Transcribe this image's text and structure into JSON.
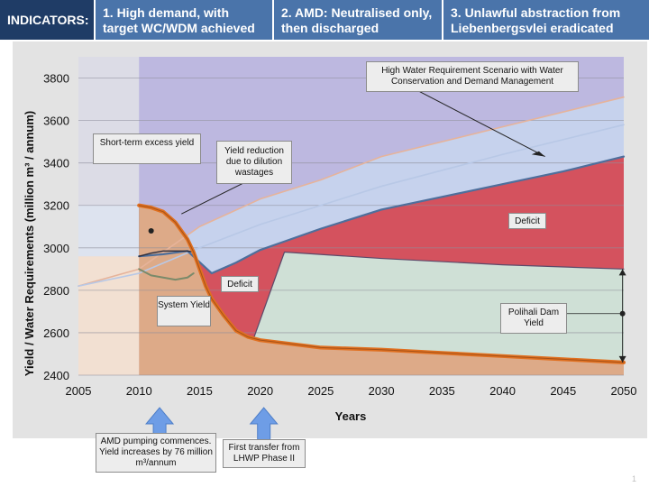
{
  "header": {
    "label": "INDICATORS:",
    "indicators": [
      "1. High demand, with target WC/WDM achieved",
      "2. AMD: Neutralised only, then discharged",
      "3. Unlawful abstraction from Liebenbergsvlei eradicated"
    ]
  },
  "page_number": "1",
  "colors": {
    "deficit": "#D4525E",
    "system_yield_area": "#DDAA88",
    "excess_yield": "#4F6FA0",
    "polihali": "#CFE0D6",
    "requirement_area": "#C8D6EE",
    "upper_band": "#B9B3DE",
    "yield_line": "#E07020"
  },
  "chart_data": {
    "type": "area",
    "title": "",
    "xlabel": "Years",
    "ylabel": "Yield / Water Requirements (million m³ / annum)",
    "xlim": [
      2005,
      2050
    ],
    "ylim": [
      2400,
      3900
    ],
    "xticks": [
      2005,
      2010,
      2015,
      2020,
      2025,
      2030,
      2035,
      2040,
      2045,
      2050
    ],
    "yticks": [
      2400,
      2600,
      2800,
      3000,
      3200,
      3400,
      3600,
      3800
    ],
    "grid": true,
    "series": [
      {
        "role": "requirement",
        "x": [
          2010,
          2012,
          2014,
          2016,
          2018,
          2020,
          2022,
          2025,
          2030,
          2035,
          2040,
          2045,
          2050
        ],
        "y": [
          2960,
          2970,
          2985,
          2880,
          2930,
          2990,
          3030,
          3090,
          3180,
          3240,
          3300,
          3360,
          3430
        ]
      },
      {
        "role": "system-yield",
        "x": [
          2010,
          2011,
          2012,
          2013,
          2014,
          2014.5,
          2015,
          2015.5,
          2016,
          2017,
          2018,
          2019,
          2020,
          2025,
          2030,
          2035,
          2040,
          2045,
          2050
        ],
        "y": [
          3200,
          3190,
          3170,
          3120,
          3040,
          2980,
          2900,
          2820,
          2760,
          2680,
          2610,
          2580,
          2565,
          2530,
          2520,
          2505,
          2490,
          2475,
          2460
        ]
      },
      {
        "role": "short-term-base",
        "x": [
          2010,
          2011,
          2012,
          2013,
          2014,
          2014.5
        ],
        "y": [
          2960,
          2975,
          2985,
          2985,
          2985,
          2980
        ]
      },
      {
        "role": "polihali-top",
        "x": [
          2019.5,
          2022,
          2030,
          2040,
          2050
        ],
        "y": [
          2580,
          2980,
          2950,
          2920,
          2900
        ]
      },
      {
        "role": "high-req-1",
        "x": [
          2005,
          2010,
          2015,
          2020,
          2025,
          2030,
          2040,
          2050
        ],
        "y": [
          2820,
          2900,
          3100,
          3230,
          3320,
          3430,
          3570,
          3710
        ]
      },
      {
        "role": "high-req-2",
        "x": [
          2005,
          2010,
          2015,
          2020,
          2025,
          2030,
          2040,
          2050
        ],
        "y": [
          2820,
          2880,
          3000,
          3110,
          3200,
          3290,
          3440,
          3580
        ]
      },
      {
        "role": "alt-yield",
        "x": [
          2010,
          2011,
          2012,
          2013,
          2014,
          2014.5
        ],
        "y": [
          2900,
          2870,
          2860,
          2850,
          2860,
          2880
        ]
      }
    ],
    "annotations": {
      "high_water": "High Water Requirement Scenario with Water Conservation and Demand Management",
      "short_term": "Short-term excess yield",
      "yield_reduction": "Yield reduction due to dilution wastages",
      "deficit_right": "Deficit",
      "deficit_left": "Deficit",
      "system_yield": "System Yield",
      "polihali": "Polihali Dam Yield",
      "amd": "AMD pumping commences. Yield increases by 76 million m³/annum",
      "first_transfer": "First transfer from LHWP Phase II"
    }
  }
}
